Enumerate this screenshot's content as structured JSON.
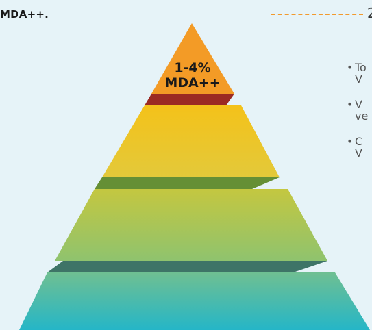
{
  "header": {
    "text": "MDA++.",
    "right_fragment": "2"
  },
  "pyramid": {
    "top_label_line1": "1-4%",
    "top_label_line2": "MDA++",
    "tiers": [
      {
        "name": "apex",
        "color": "#f39c2a",
        "shadow": "#9c2a24"
      },
      {
        "name": "yellow",
        "color": "#f2c31e",
        "shadow": "#668f36"
      },
      {
        "name": "green",
        "color": "#b7c94b",
        "shadow": "#3d7367"
      },
      {
        "name": "teal",
        "color": "#3bb9c2"
      }
    ]
  },
  "bullets": [
    {
      "line1": "To",
      "line2": "V"
    },
    {
      "line1": "V",
      "line2": "ve"
    },
    {
      "line1": "C",
      "line2": "V"
    }
  ]
}
